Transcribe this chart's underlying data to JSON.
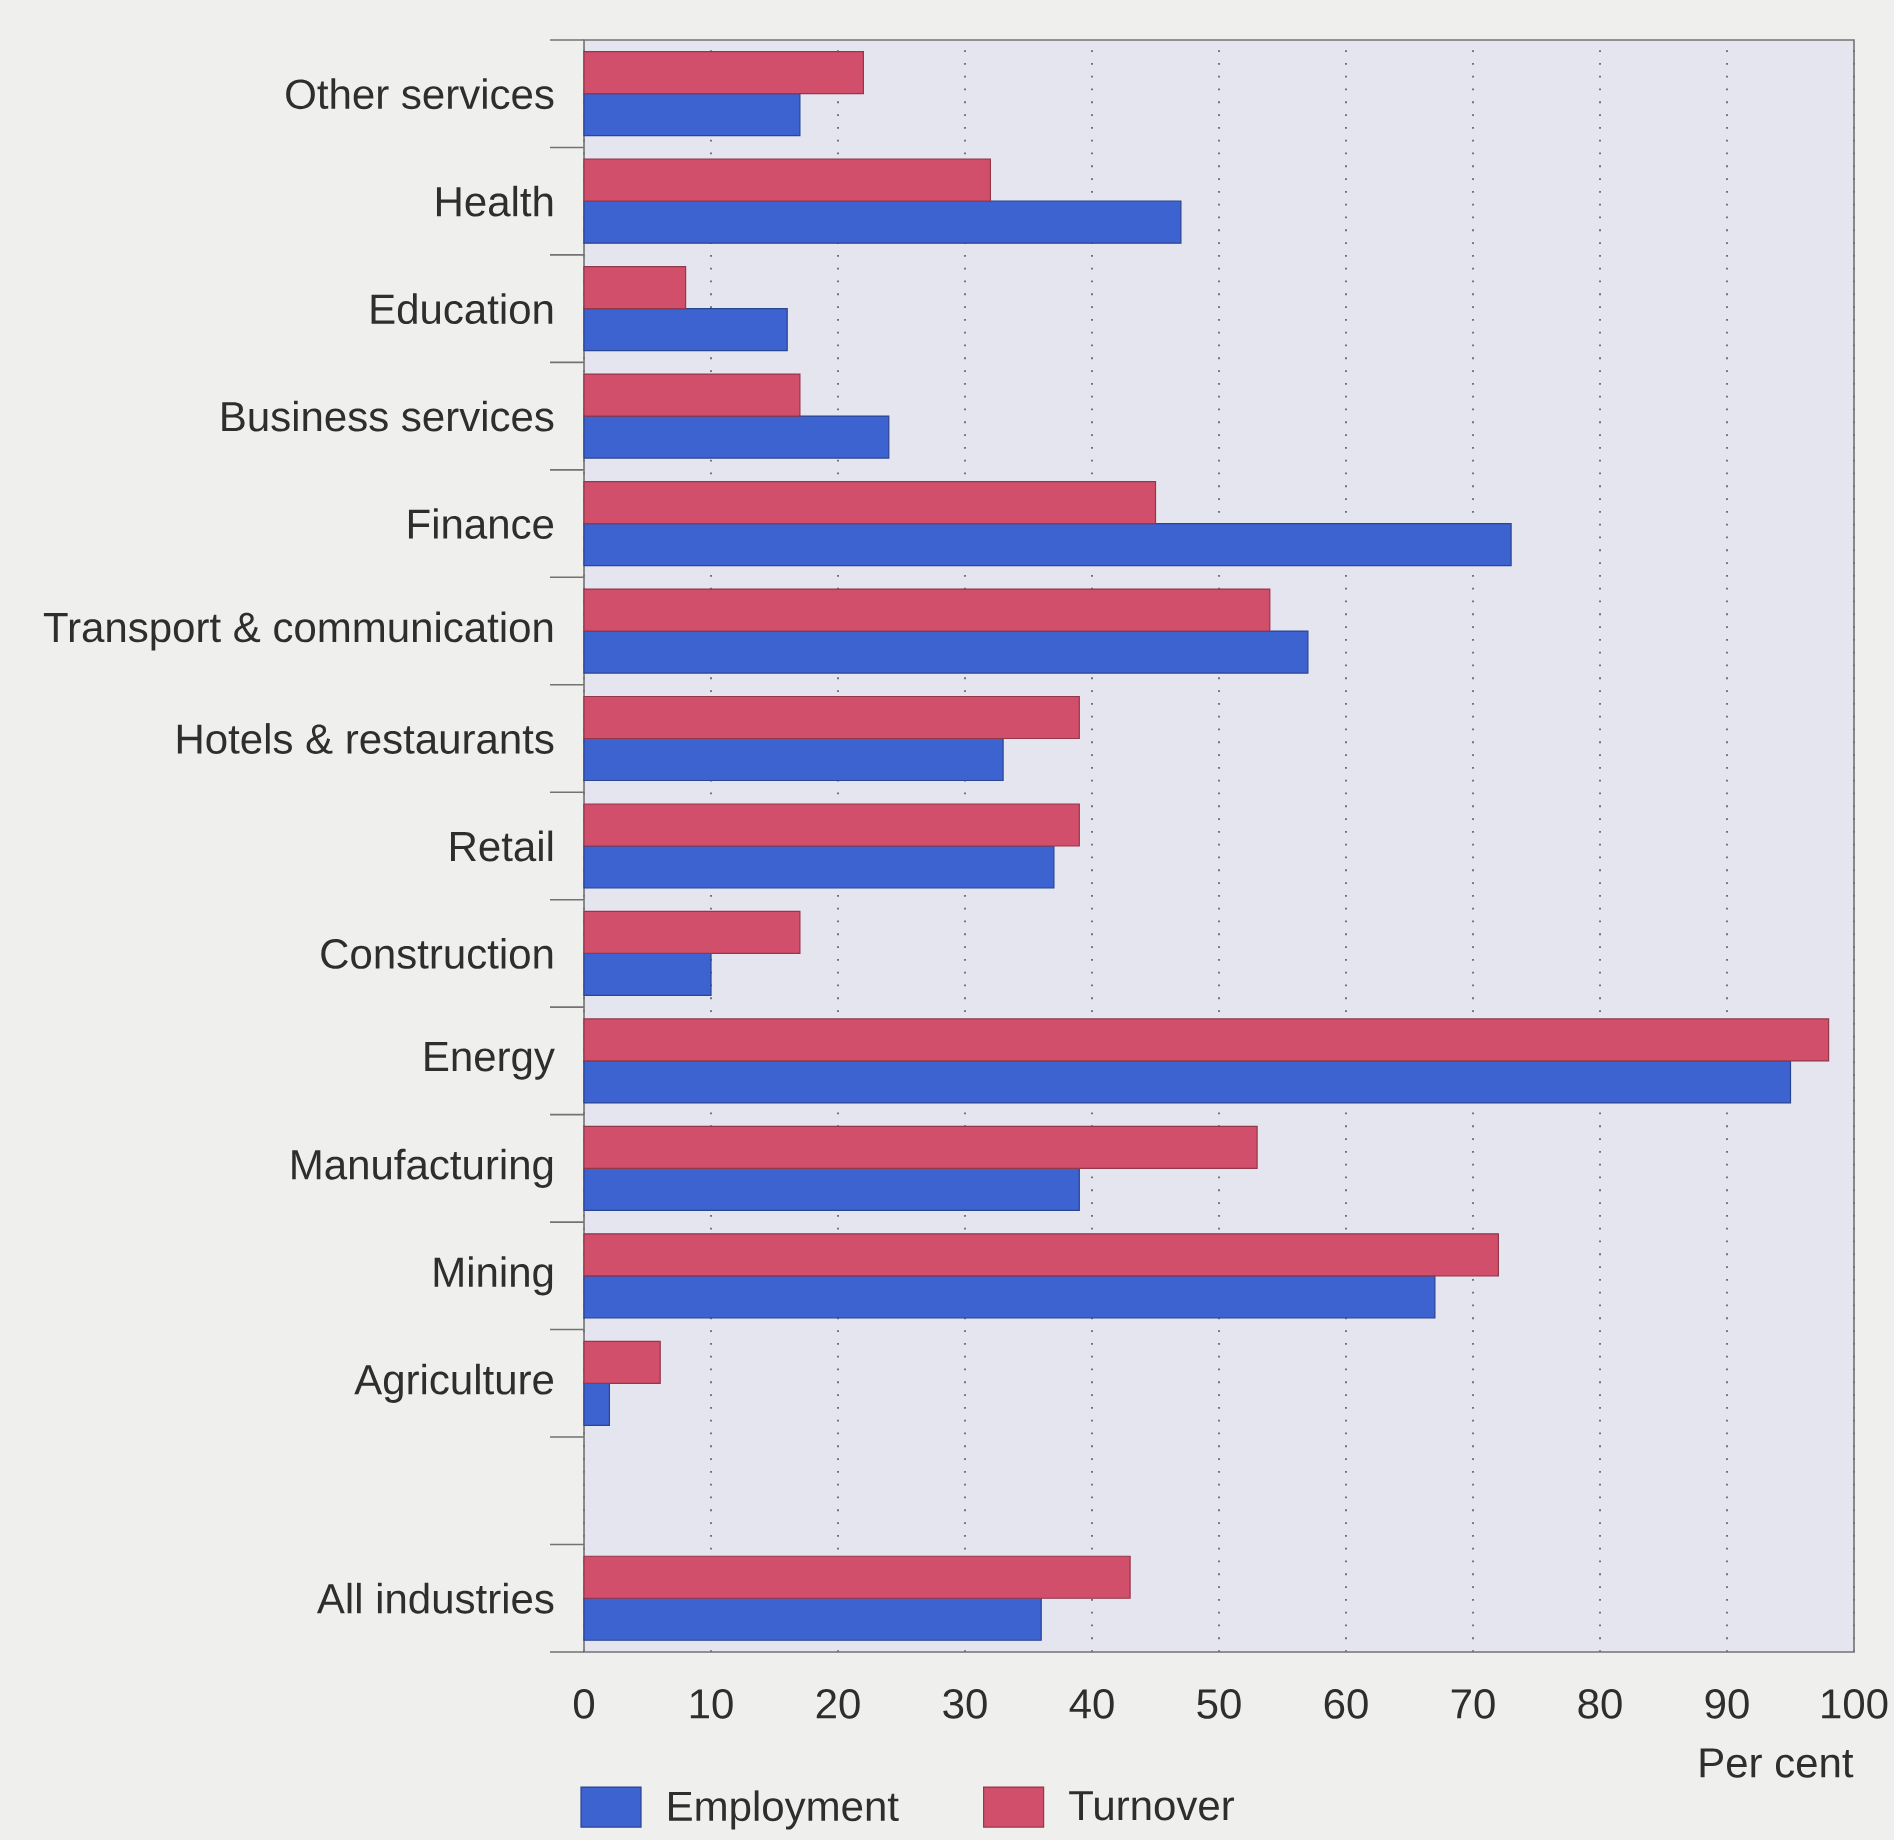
{
  "chart_data": {
    "type": "bar",
    "orientation": "horizontal",
    "categories": [
      "Other services",
      "Health",
      "Education",
      "Business services",
      "Finance",
      "Transport & communication",
      "Hotels & restaurants",
      "Retail",
      "Construction",
      "Energy",
      "Manufacturing",
      "Mining",
      "Agriculture",
      null,
      "All industries"
    ],
    "series": [
      {
        "name": "Employment",
        "color": "#3c63cf",
        "values": [
          17,
          47,
          16,
          24,
          73,
          57,
          33,
          37,
          10,
          95,
          39,
          67,
          2,
          null,
          36
        ]
      },
      {
        "name": "Turnover",
        "color": "#d24f6b",
        "values": [
          22,
          32,
          8,
          17,
          45,
          54,
          39,
          39,
          17,
          98,
          53,
          72,
          6,
          null,
          43
        ]
      }
    ],
    "xlabel": "Per cent",
    "xlim": [
      0,
      100
    ],
    "xticks": [
      0,
      10,
      20,
      30,
      40,
      50,
      60,
      70,
      80,
      90,
      100
    ],
    "grid": "x",
    "legend": "bottom"
  }
}
